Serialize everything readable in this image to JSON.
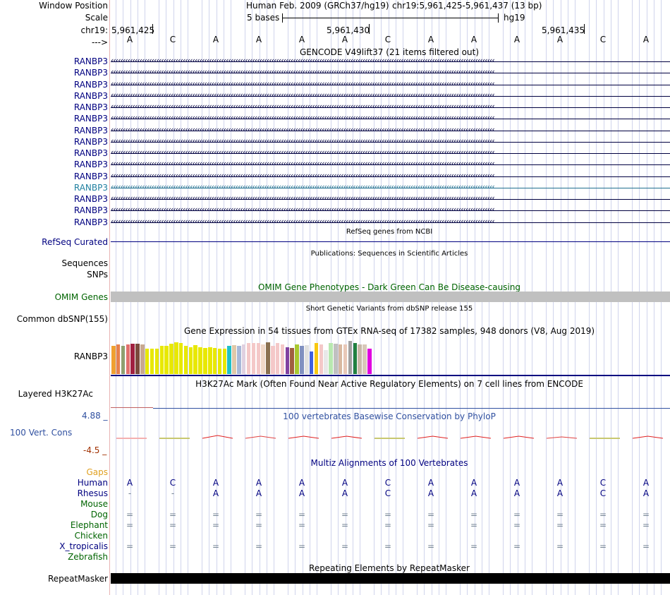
{
  "ruler": {
    "window_position_label": "Window Position",
    "scale_label": "Scale",
    "chrom_label": "chr19:",
    "arrow_label": "--->",
    "assembly_info": "Human Feb. 2009 (GRCh37/hg19)",
    "position_info": "chr19:5,961,425-5,961,437 (13 bp)",
    "scale_text": "5 bases",
    "assembly_short": "hg19",
    "positions": [
      "5,961,425",
      "5,961,430",
      "5,961,435"
    ]
  },
  "sequence": [
    "A",
    "C",
    "A",
    "A",
    "A",
    "A",
    "C",
    "A",
    "A",
    "A",
    "A",
    "C",
    "A"
  ],
  "gencode": {
    "title": "GENCODE V49lift37 (21 items filtered out)",
    "items": [
      "RANBP3",
      "RANBP3",
      "RANBP3",
      "RANBP3",
      "RANBP3",
      "RANBP3",
      "RANBP3",
      "RANBP3",
      "RANBP3",
      "RANBP3",
      "RANBP3",
      "RANBP3",
      "RANBP3",
      "RANBP3",
      "RANBP3"
    ],
    "highlight_index": 11
  },
  "refseq": {
    "title": "RefSeq genes from NCBI",
    "label": "RefSeq Curated"
  },
  "publications": {
    "title": "Publications: Sequences in Scientific Articles",
    "label1": "Sequences",
    "label2": "SNPs"
  },
  "omim": {
    "title": "OMIM Gene Phenotypes - Dark Green Can Be Disease-causing",
    "label": "OMIM Genes"
  },
  "dbsnp": {
    "title": "Short Genetic Variants from dbSNP release 155",
    "label": "Common dbSNP(155)"
  },
  "gtex": {
    "title": "Gene Expression in 54 tissues from GTEx RNA-seq of 17382 samples, 948 donors (V8, Aug 2019)",
    "label": "RANBP3",
    "bars": [
      {
        "h": 0.88,
        "c": "#f0a030"
      },
      {
        "h": 0.93,
        "c": "#e8804a"
      },
      {
        "h": 0.88,
        "c": "#8fa070"
      },
      {
        "h": 0.93,
        "c": "#e2706e"
      },
      {
        "h": 0.95,
        "c": "#a02040"
      },
      {
        "h": 0.95,
        "c": "#7a4a3c"
      },
      {
        "h": 0.93,
        "c": "#c8a890"
      },
      {
        "h": 0.8,
        "c": "#e8e800"
      },
      {
        "h": 0.8,
        "c": "#e8e800"
      },
      {
        "h": 0.8,
        "c": "#e8e800"
      },
      {
        "h": 0.88,
        "c": "#e8e800"
      },
      {
        "h": 0.88,
        "c": "#e8e800"
      },
      {
        "h": 0.95,
        "c": "#e8e800"
      },
      {
        "h": 1.0,
        "c": "#e8e800"
      },
      {
        "h": 0.98,
        "c": "#e8e800"
      },
      {
        "h": 0.88,
        "c": "#e8e800"
      },
      {
        "h": 0.85,
        "c": "#e8e800"
      },
      {
        "h": 0.9,
        "c": "#e8e800"
      },
      {
        "h": 0.85,
        "c": "#e8e800"
      },
      {
        "h": 0.83,
        "c": "#e8e800"
      },
      {
        "h": 0.85,
        "c": "#e8e800"
      },
      {
        "h": 0.83,
        "c": "#e8e800"
      },
      {
        "h": 0.8,
        "c": "#e8e800"
      },
      {
        "h": 0.8,
        "c": "#e8e800"
      },
      {
        "h": 0.88,
        "c": "#20c0c8"
      },
      {
        "h": 0.9,
        "c": "#e0c8a8"
      },
      {
        "h": 0.88,
        "c": "#a8b8d8"
      },
      {
        "h": 0.93,
        "c": "#e0d0e0"
      },
      {
        "h": 0.98,
        "c": "#f4c8c8"
      },
      {
        "h": 0.98,
        "c": "#f4c8c8"
      },
      {
        "h": 0.98,
        "c": "#f4c8c8"
      },
      {
        "h": 0.93,
        "c": "#f0d8c8"
      },
      {
        "h": 1.0,
        "c": "#8a7050"
      },
      {
        "h": 0.88,
        "c": "#f4c8c8"
      },
      {
        "h": 0.98,
        "c": "#f4c8c8"
      },
      {
        "h": 0.93,
        "c": "#f4c8c8"
      },
      {
        "h": 0.85,
        "c": "#8040a0"
      },
      {
        "h": 0.83,
        "c": "#a06040"
      },
      {
        "h": 0.93,
        "c": "#a8c830"
      },
      {
        "h": 0.88,
        "c": "#8090c0"
      },
      {
        "h": 0.9,
        "c": "#e0e0e0"
      },
      {
        "h": 0.7,
        "c": "#4060e0"
      },
      {
        "h": 0.98,
        "c": "#f8c810"
      },
      {
        "h": 0.93,
        "c": "#f4c8c8"
      },
      {
        "h": 0.75,
        "c": "#e8e8e8"
      },
      {
        "h": 0.98,
        "c": "#b8e8b0"
      },
      {
        "h": 0.95,
        "c": "#c0c0c0"
      },
      {
        "h": 0.93,
        "c": "#d8b8a0"
      },
      {
        "h": 0.93,
        "c": "#e8c8b8"
      },
      {
        "h": 1.05,
        "c": "#a0a0a0"
      },
      {
        "h": 0.98,
        "c": "#208040"
      },
      {
        "h": 0.93,
        "c": "#c8b8a8"
      },
      {
        "h": 0.93,
        "c": "#d8c8b8"
      },
      {
        "h": 0.8,
        "c": "#e000e0"
      }
    ]
  },
  "h3k27ac": {
    "title": "H3K27Ac Mark (Often Found Near Active Regulatory Elements) on 7 cell lines from ENCODE",
    "label": "Layered H3K27Ac"
  },
  "phylop": {
    "title": "100 vertebrates Basewise Conservation by PhyloP",
    "label": "100 Vert. Cons",
    "ymax": "4.88 _",
    "ymin": "-4.5 _"
  },
  "multiz": {
    "title": "Multiz Alignments of 100 Vertebrates",
    "species": [
      {
        "name": "Gaps",
        "color": "#e0a020",
        "row": []
      },
      {
        "name": "Human",
        "color": "#000080",
        "row": [
          "A",
          "C",
          "A",
          "A",
          "A",
          "A",
          "C",
          "A",
          "A",
          "A",
          "A",
          "C",
          "A"
        ]
      },
      {
        "name": "Rhesus",
        "color": "#000080",
        "row": [
          "-",
          "-",
          "A",
          "A",
          "A",
          "A",
          "C",
          "A",
          "A",
          "A",
          "A",
          "C",
          "A"
        ]
      },
      {
        "name": "Mouse",
        "color": "#006400",
        "row": []
      },
      {
        "name": "Dog",
        "color": "#006400",
        "row": [
          "=",
          "=",
          "=",
          "=",
          "=",
          "=",
          "=",
          "=",
          "=",
          "=",
          "=",
          "=",
          "="
        ]
      },
      {
        "name": "Elephant",
        "color": "#006400",
        "row": [
          "=",
          "=",
          "=",
          "=",
          "=",
          "=",
          "=",
          "=",
          "=",
          "=",
          "=",
          "=",
          "="
        ]
      },
      {
        "name": "Chicken",
        "color": "#006400",
        "row": []
      },
      {
        "name": "X_tropicalis",
        "color": "#000080",
        "row": [
          "=",
          "=",
          "=",
          "=",
          "=",
          "=",
          "=",
          "=",
          "=",
          "=",
          "=",
          "=",
          "="
        ]
      },
      {
        "name": "Zebrafish",
        "color": "#006400",
        "row": []
      }
    ]
  },
  "repeatmasker": {
    "title": "Repeating Elements by RepeatMasker",
    "label": "RepeatMasker"
  }
}
